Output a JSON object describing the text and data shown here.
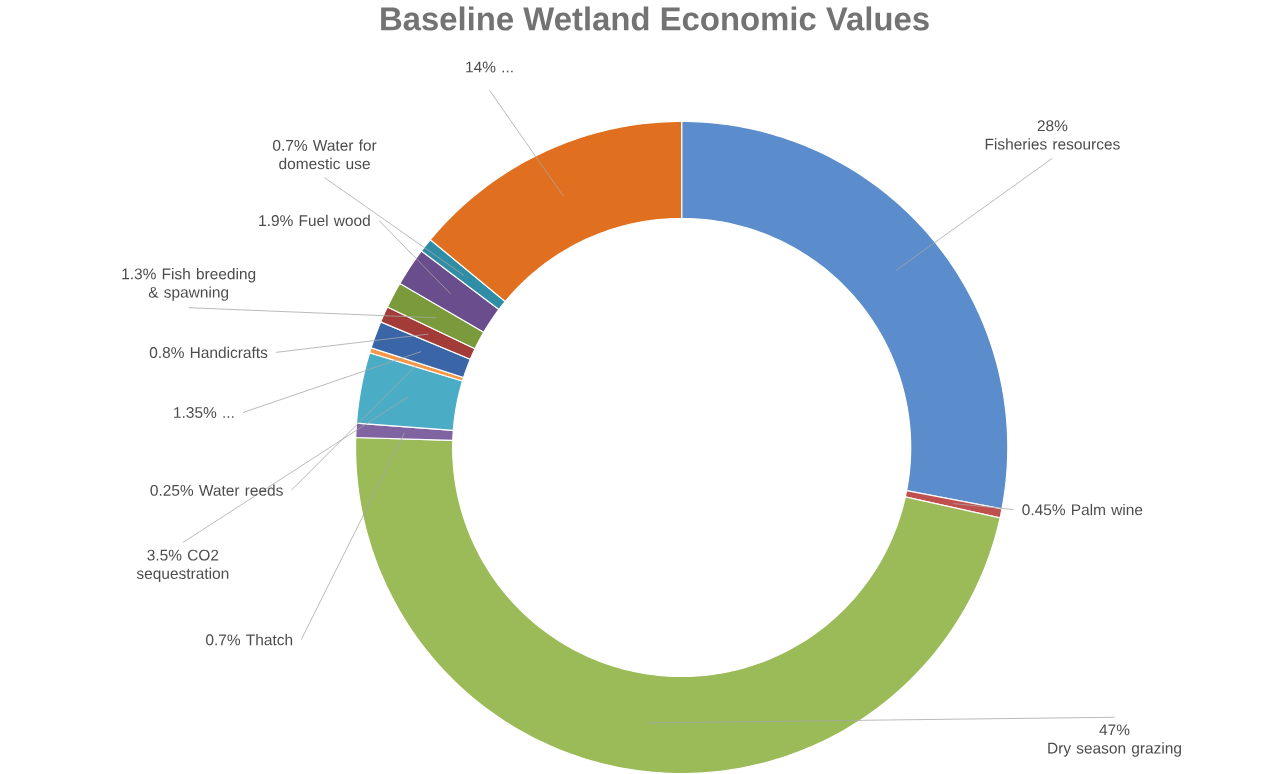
{
  "chart_data": {
    "type": "donut",
    "title": "Baseline Wetland Economic Values",
    "categories": [
      "Fisheries resources",
      "Palm wine",
      "Dry season grazing",
      "Thatch",
      "CO2 sequestration",
      "Water reeds",
      "...",
      "Handicrafts",
      "Fish breeding & spawning",
      "Fuel wood",
      "Water for domestic use",
      "..."
    ],
    "values": [
      28,
      0.45,
      47,
      0.7,
      3.5,
      0.25,
      1.35,
      0.8,
      1.3,
      1.9,
      0.7,
      14
    ],
    "value_labels": [
      "28%",
      "0.45%",
      "47%",
      "0.7%",
      "3.5%",
      "0.25%",
      "1.35%",
      "0.8%",
      "1.3%",
      "1.9%",
      "0.7%",
      "14%"
    ],
    "colors": [
      "#5b8ccc",
      "#c0504d",
      "#9bbb59",
      "#8064a2",
      "#4bacc6",
      "#f79646",
      "#3a66a8",
      "#a33b39",
      "#7a9a3c",
      "#6a4d8c",
      "#2f8ea6",
      "#e07020"
    ]
  }
}
